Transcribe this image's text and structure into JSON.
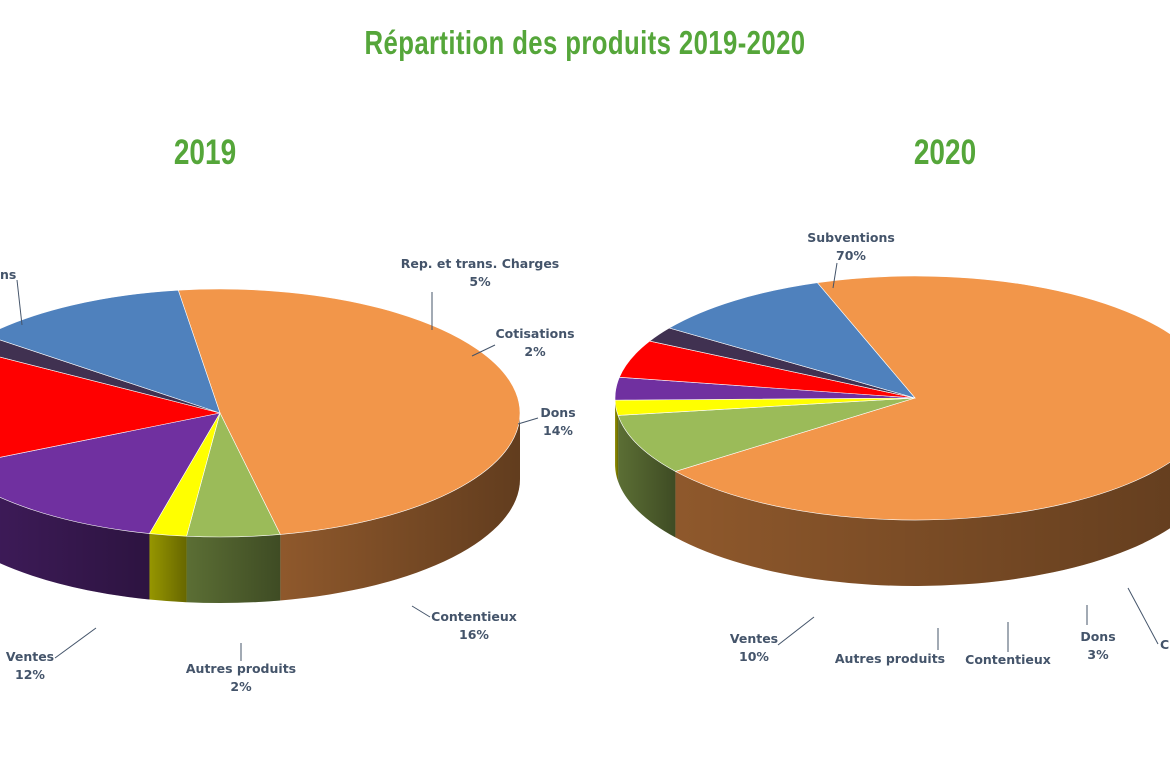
{
  "title": "Répartition des produits 2019-2020",
  "colors": {
    "title": "#55a63a",
    "Subventions": "#f2964a",
    "Rep. et trans. Charges": "#9bbb59",
    "Cotisations": "#ffff00",
    "Dons": "#7030a0",
    "Contentieux": "#ff0000",
    "Autres produits": "#403151",
    "Ventes": "#4f81bd",
    "label": "#44546a"
  },
  "chart_data": [
    {
      "type": "pie",
      "title": "2019",
      "slices": [
        {
          "category": "Subventions",
          "value": 49,
          "label": "ns",
          "pct_label": ""
        },
        {
          "category": "Rep. et trans. Charges",
          "value": 5,
          "label": "Rep. et trans. Charges",
          "pct_label": "5%"
        },
        {
          "category": "Cotisations",
          "value": 2,
          "label": "Cotisations",
          "pct_label": "2%"
        },
        {
          "category": "Dons",
          "value": 14,
          "label": "Dons",
          "pct_label": "14%"
        },
        {
          "category": "Contentieux",
          "value": 16,
          "label": "Contentieux",
          "pct_label": "16%"
        },
        {
          "category": "Autres produits",
          "value": 2,
          "label": "Autres produits",
          "pct_label": "2%"
        },
        {
          "category": "Ventes",
          "value": 12,
          "label": "Ventes",
          "pct_label": "12%"
        }
      ]
    },
    {
      "type": "pie",
      "title": "2020",
      "slices": [
        {
          "category": "Subventions",
          "value": 70,
          "label": "Subventions",
          "pct_label": "70%"
        },
        {
          "category": "Rep. et trans. Charges",
          "value": 8,
          "label": "",
          "pct_label": ""
        },
        {
          "category": "Cotisations",
          "value": 2,
          "label": "C",
          "pct_label": ""
        },
        {
          "category": "Dons",
          "value": 3,
          "label": "Dons",
          "pct_label": "3%"
        },
        {
          "category": "Contentieux",
          "value": 5,
          "label": "Contentieux",
          "pct_label": ""
        },
        {
          "category": "Autres produits",
          "value": 2,
          "label": "Autres produits",
          "pct_label": ""
        },
        {
          "category": "Ventes",
          "value": 10,
          "label": "Ventes",
          "pct_label": "10%"
        }
      ]
    }
  ]
}
